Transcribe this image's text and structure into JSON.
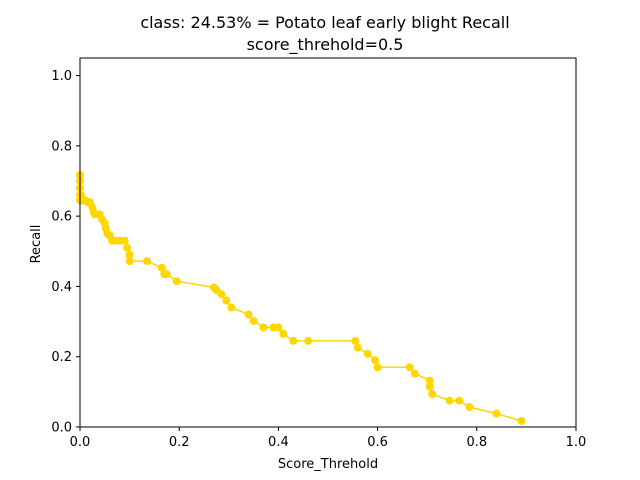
{
  "chart_data": {
    "type": "line",
    "title": "class: 24.53% = Potato leaf early blight Recall",
    "subtitle": "score_threhold=0.5",
    "xlabel": "Score_Threhold",
    "ylabel": "Recall",
    "xlim": [
      0,
      1.0
    ],
    "ylim": [
      0,
      1.05
    ],
    "xticks": [
      "0.0",
      "0.2",
      "0.4",
      "0.6",
      "0.8",
      "1.0"
    ],
    "yticks": [
      "0.0",
      "0.2",
      "0.4",
      "0.6",
      "0.8",
      "1.0"
    ],
    "grid": false,
    "series": [
      {
        "color": "#ffd700",
        "x": [
          0.0,
          0.0,
          0.0,
          0.0,
          0.0,
          0.002,
          0.003,
          0.005,
          0.01,
          0.015,
          0.02,
          0.025,
          0.028,
          0.03,
          0.04,
          0.045,
          0.05,
          0.052,
          0.055,
          0.06,
          0.065,
          0.07,
          0.08,
          0.09,
          0.095,
          0.1,
          0.1,
          0.135,
          0.165,
          0.17,
          0.175,
          0.195,
          0.27,
          0.275,
          0.285,
          0.295,
          0.305,
          0.34,
          0.35,
          0.37,
          0.39,
          0.4,
          0.41,
          0.43,
          0.46,
          0.555,
          0.56,
          0.58,
          0.595,
          0.6,
          0.6,
          0.665,
          0.675,
          0.705,
          0.705,
          0.71,
          0.745,
          0.765,
          0.785,
          0.84,
          0.89
        ],
        "y": [
          0.717,
          0.7,
          0.68,
          0.66,
          0.645,
          0.66,
          0.645,
          0.645,
          0.645,
          0.64,
          0.64,
          0.625,
          0.61,
          0.605,
          0.605,
          0.59,
          0.58,
          0.565,
          0.55,
          0.545,
          0.53,
          0.53,
          0.53,
          0.53,
          0.51,
          0.49,
          0.472,
          0.472,
          0.453,
          0.435,
          0.435,
          0.415,
          0.397,
          0.39,
          0.378,
          0.36,
          0.34,
          0.32,
          0.302,
          0.283,
          0.283,
          0.283,
          0.265,
          0.245,
          0.245,
          0.245,
          0.226,
          0.208,
          0.19,
          0.17,
          0.17,
          0.17,
          0.152,
          0.132,
          0.115,
          0.094,
          0.075,
          0.075,
          0.057,
          0.038,
          0.017
        ]
      }
    ]
  }
}
